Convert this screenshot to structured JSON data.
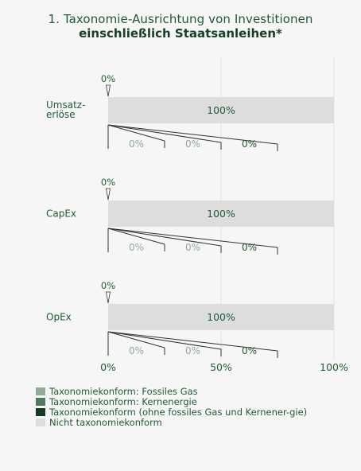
{
  "header": {
    "title_line1": "1. Taxonomie-Ausrichtung von Investitionen",
    "title_line2": "einschließlich Staatsanleihen*"
  },
  "colors": {
    "fossil_gas": "#8fac98",
    "nuclear": "#4e7b5d",
    "other_aligned": "#103d1f",
    "not_aligned": "#dddddd",
    "text": "#1f5b36",
    "grey_label": "#93aa9a"
  },
  "chart_data": {
    "type": "bar",
    "orientation": "horizontal",
    "stacked": true,
    "categories": [
      {
        "label_lines": [
          "Umsatz-",
          "erlöse"
        ]
      },
      {
        "label_lines": [
          "CapEx"
        ]
      },
      {
        "label_lines": [
          "OpEx"
        ]
      }
    ],
    "series": [
      {
        "name": "Taxonomiekonform: Fossiles Gas",
        "values": [
          0,
          0,
          0
        ],
        "labels": [
          "0%",
          "0%",
          "0%"
        ]
      },
      {
        "name": "Taxonomiekonform: Kernenergie",
        "values": [
          0,
          0,
          0
        ],
        "labels": [
          "0%",
          "0%",
          "0%"
        ]
      },
      {
        "name": "Taxonomiekonform (ohne fossiles Gas und Kernener-gie)",
        "values": [
          0,
          0,
          0
        ],
        "labels": [
          "0%",
          "0%",
          "0%"
        ]
      },
      {
        "name": "Nicht taxonomiekonform",
        "values": [
          100,
          100,
          100
        ],
        "labels": [
          "100%",
          "100%",
          "100%"
        ]
      }
    ],
    "aligned_total_labels": [
      "0%",
      "0%",
      "0%"
    ],
    "x_ticks": [
      {
        "value": 0,
        "label": "0%"
      },
      {
        "value": 50,
        "label": "50%"
      },
      {
        "value": 100,
        "label": "100%"
      }
    ],
    "xlim": [
      0,
      100
    ],
    "grid": true
  },
  "legend": [
    {
      "label": "Taxonomiekonform: Fossiles Gas",
      "color": "#8fac98"
    },
    {
      "label": "Taxonomiekonform: Kernenergie",
      "color": "#4e7b5d"
    },
    {
      "label": "Taxonomiekonform (ohne fossiles Gas und Kernener-gie)",
      "color": "#103d1f"
    },
    {
      "label": "Nicht taxonomiekonform",
      "color": "#dddddd"
    }
  ]
}
